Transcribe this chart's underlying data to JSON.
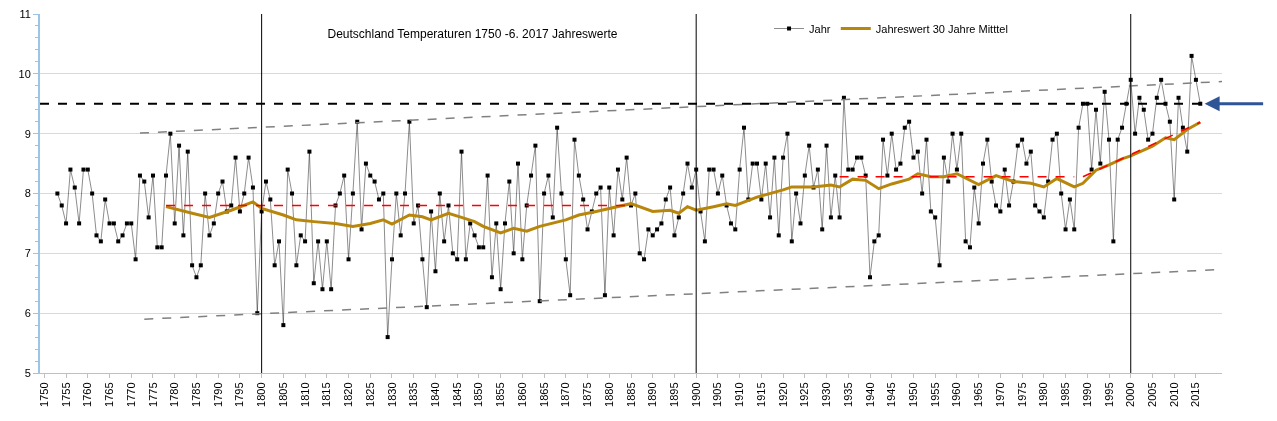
{
  "chart_data": {
    "type": "line",
    "title": "Deutschland Temperaturen 1750 -6. 2017 Jahreswerte",
    "xlim": [
      1749,
      2021
    ],
    "xticks": [
      1750,
      1755,
      1760,
      1765,
      1770,
      1775,
      1780,
      1785,
      1790,
      1795,
      1800,
      1805,
      1810,
      1815,
      1820,
      1825,
      1830,
      1835,
      1840,
      1845,
      1850,
      1855,
      1860,
      1865,
      1870,
      1875,
      1880,
      1885,
      1890,
      1895,
      1900,
      1905,
      1910,
      1915,
      1920,
      1925,
      1930,
      1935,
      1940,
      1945,
      1950,
      1955,
      1960,
      1965,
      1970,
      1975,
      1980,
      1985,
      1990,
      1995,
      2000,
      2005,
      2010,
      2015
    ],
    "ylim": [
      5,
      11
    ],
    "yticks": [
      5,
      6,
      7,
      8,
      9,
      10,
      11
    ],
    "grid": "y",
    "legend": "top",
    "series": [
      {
        "name": "Jahr",
        "color": "#000000",
        "marker": "square",
        "line_style": "solid",
        "x": [
          1753,
          1754,
          1755,
          1756,
          1757,
          1758,
          1759,
          1760,
          1761,
          1762,
          1763,
          1764,
          1765,
          1766,
          1767,
          1768,
          1769,
          1770,
          1771,
          1772,
          1773,
          1774,
          1775,
          1776,
          1777,
          1778,
          1779,
          1780,
          1781,
          1782,
          1783,
          1784,
          1785,
          1786,
          1787,
          1788,
          1789,
          1790,
          1791,
          1792,
          1793,
          1794,
          1795,
          1796,
          1797,
          1798,
          1799,
          1800,
          1801,
          1802,
          1803,
          1804,
          1805,
          1806,
          1807,
          1808,
          1809,
          1810,
          1811,
          1812,
          1813,
          1814,
          1815,
          1816,
          1817,
          1818,
          1819,
          1820,
          1821,
          1822,
          1823,
          1824,
          1825,
          1826,
          1827,
          1828,
          1829,
          1830,
          1831,
          1832,
          1833,
          1834,
          1835,
          1836,
          1837,
          1838,
          1839,
          1840,
          1841,
          1842,
          1843,
          1844,
          1845,
          1846,
          1847,
          1848,
          1849,
          1850,
          1851,
          1852,
          1853,
          1854,
          1855,
          1856,
          1857,
          1858,
          1859,
          1860,
          1861,
          1862,
          1863,
          1864,
          1865,
          1866,
          1867,
          1868,
          1869,
          1870,
          1871,
          1872,
          1873,
          1874,
          1875,
          1876,
          1877,
          1878,
          1879,
          1880,
          1881,
          1882,
          1883,
          1884,
          1885,
          1886,
          1887,
          1888,
          1889,
          1890,
          1891,
          1892,
          1893,
          1894,
          1895,
          1896,
          1897,
          1898,
          1899,
          1900,
          1901,
          1902,
          1903,
          1904,
          1905,
          1906,
          1907,
          1908,
          1909,
          1910,
          1911,
          1912,
          1913,
          1914,
          1915,
          1916,
          1917,
          1918,
          1919,
          1920,
          1921,
          1922,
          1923,
          1924,
          1925,
          1926,
          1927,
          1928,
          1929,
          1930,
          1931,
          1932,
          1933,
          1934,
          1935,
          1936,
          1937,
          1938,
          1939,
          1940,
          1941,
          1942,
          1943,
          1944,
          1945,
          1946,
          1947,
          1948,
          1949,
          1950,
          1951,
          1952,
          1953,
          1954,
          1955,
          1956,
          1957,
          1958,
          1959,
          1960,
          1961,
          1962,
          1963,
          1964,
          1965,
          1966,
          1967,
          1968,
          1969,
          1970,
          1971,
          1972,
          1973,
          1974,
          1975,
          1976,
          1977,
          1978,
          1979,
          1980,
          1981,
          1982,
          1983,
          1984,
          1985,
          1986,
          1987,
          1988,
          1989,
          1990,
          1991,
          1992,
          1993,
          1994,
          1995,
          1996,
          1997,
          1998,
          1999,
          2000,
          2001,
          2002,
          2003,
          2004,
          2005,
          2006,
          2007,
          2008,
          2009,
          2010,
          2011,
          2012,
          2013,
          2014,
          2015,
          2016
        ],
        "values": [
          8.0,
          7.8,
          7.5,
          8.4,
          8.1,
          7.5,
          8.4,
          8.4,
          8.0,
          7.3,
          7.2,
          7.9,
          7.5,
          7.5,
          7.2,
          7.3,
          7.5,
          7.5,
          6.9,
          8.3,
          8.2,
          7.6,
          8.3,
          7.1,
          7.1,
          8.3,
          9.0,
          7.5,
          8.8,
          7.3,
          8.7,
          6.8,
          6.6,
          6.8,
          8.0,
          7.3,
          7.5,
          8.0,
          8.2,
          7.7,
          7.8,
          8.6,
          7.7,
          8.0,
          8.6,
          8.1,
          6.0,
          7.7,
          8.2,
          7.9,
          6.8,
          7.2,
          5.8,
          8.4,
          8.0,
          6.8,
          7.3,
          7.2,
          8.7,
          6.5,
          7.2,
          6.4,
          7.2,
          6.4,
          7.8,
          8.0,
          8.3,
          6.9,
          8.0,
          9.2,
          7.4,
          8.5,
          8.3,
          8.2,
          7.9,
          8.0,
          5.6,
          6.9,
          8.0,
          7.3,
          8.0,
          9.2,
          7.5,
          7.8,
          6.9,
          6.1,
          7.7,
          6.7,
          8.0,
          7.2,
          7.8,
          7.0,
          6.9,
          8.7,
          6.9,
          7.5,
          7.3,
          7.1,
          7.1,
          8.3,
          6.6,
          7.5,
          6.4,
          7.5,
          8.2,
          7.0,
          8.5,
          6.9,
          7.8,
          8.3,
          8.8,
          6.2,
          8.0,
          8.3,
          7.6,
          9.1,
          8.0,
          6.9,
          6.3,
          8.9,
          8.3,
          7.9,
          7.4,
          7.7,
          8.0,
          8.1,
          6.3,
          8.1,
          7.3,
          8.4,
          7.9,
          8.6,
          7.8,
          8.0,
          7.0,
          6.9,
          7.4,
          7.3,
          7.4,
          7.5,
          7.9,
          8.1,
          7.3,
          7.6,
          8.0,
          8.5,
          8.1,
          8.4,
          7.7,
          7.2,
          8.4,
          8.4,
          8.0,
          8.3,
          7.8,
          7.5,
          7.4,
          8.4,
          9.1,
          7.9,
          8.5,
          8.5,
          7.9,
          8.5,
          7.6,
          8.6,
          7.3,
          8.6,
          9.0,
          7.2,
          8.0,
          7.5,
          8.3,
          8.8,
          8.1,
          8.4,
          7.4,
          8.8,
          7.6,
          8.3,
          7.6,
          9.6,
          8.4,
          8.4,
          8.6,
          8.6,
          8.3,
          6.6,
          7.2,
          7.3,
          8.9,
          8.3,
          9.0,
          8.4,
          8.5,
          9.1,
          9.2,
          8.6,
          8.7,
          8.0,
          8.9,
          7.7,
          7.6,
          6.8,
          8.6,
          8.2,
          9.0,
          8.4,
          9.0,
          7.2,
          7.1,
          8.1,
          7.5,
          8.5,
          8.9,
          8.2,
          7.8,
          7.7,
          8.4,
          7.8,
          8.2,
          8.8,
          8.9,
          8.5,
          8.7,
          7.8,
          7.7,
          7.6,
          8.2,
          8.9,
          9.0,
          8.0,
          7.4,
          7.9,
          7.4,
          9.1,
          9.5,
          9.5,
          8.4,
          9.4,
          8.5,
          9.7,
          8.9,
          7.2,
          8.9,
          9.1,
          9.5,
          9.9,
          9.0,
          9.6,
          9.4,
          8.9,
          9.0,
          9.6,
          9.9,
          9.5,
          9.2,
          7.9,
          9.6,
          9.1,
          8.7,
          10.3,
          9.9,
          9.5
        ]
      },
      {
        "name": "Jahreswert 30 Jahre Mitttel",
        "color": "#b8860b",
        "marker": "none",
        "line_style": "solid",
        "x": [
          1778,
          1784,
          1788,
          1793,
          1798,
          1800,
          1805,
          1808,
          1812,
          1817,
          1821,
          1825,
          1828,
          1830,
          1834,
          1837,
          1839,
          1843,
          1846,
          1849,
          1851,
          1855,
          1858,
          1861,
          1864,
          1870,
          1873,
          1877,
          1880,
          1885,
          1890,
          1894,
          1896,
          1898,
          1900,
          1904,
          1907,
          1909,
          1914,
          1920,
          1922,
          1927,
          1931,
          1933,
          1936,
          1939,
          1942,
          1945,
          1949,
          1951,
          1954,
          1957,
          1960,
          1965,
          1969,
          1973,
          1977,
          1980,
          1983,
          1987,
          1989,
          1992,
          1995,
          1998,
          2000,
          2005,
          2008,
          2010,
          2013,
          2016
        ],
        "values": [
          7.78,
          7.67,
          7.6,
          7.72,
          7.86,
          7.75,
          7.64,
          7.56,
          7.53,
          7.5,
          7.45,
          7.5,
          7.56,
          7.49,
          7.64,
          7.61,
          7.56,
          7.67,
          7.6,
          7.53,
          7.45,
          7.34,
          7.42,
          7.37,
          7.45,
          7.56,
          7.64,
          7.7,
          7.75,
          7.83,
          7.7,
          7.72,
          7.67,
          7.78,
          7.72,
          7.78,
          7.83,
          7.8,
          7.94,
          8.06,
          8.11,
          8.11,
          8.14,
          8.11,
          8.24,
          8.22,
          8.08,
          8.16,
          8.24,
          8.33,
          8.28,
          8.28,
          8.33,
          8.15,
          8.3,
          8.2,
          8.17,
          8.11,
          8.25,
          8.11,
          8.17,
          8.39,
          8.48,
          8.58,
          8.63,
          8.79,
          8.93,
          8.9,
          9.07,
          9.19
        ]
      },
      {
        "color": "#ff0000",
        "marker": "none",
        "line_style": "dashed",
        "x": [
          1778,
          1885
        ],
        "values": [
          7.8,
          7.8
        ]
      },
      {
        "color": "#ff0000",
        "marker": "none",
        "line_style": "dashed",
        "x": [
          1933,
          1987
        ],
        "values": [
          8.28,
          8.28
        ]
      },
      {
        "color": "#ff0000",
        "marker": "none",
        "line_style": "dashed",
        "x": [
          1989,
          1998,
          2000,
          2016
        ],
        "values": [
          8.28,
          8.58,
          8.65,
          9.19
        ]
      },
      {
        "color": "#808080",
        "marker": "none",
        "line_style": "dashed",
        "x": [
          1772,
          2021
        ],
        "values": [
          9.01,
          9.87
        ]
      },
      {
        "color": "#808080",
        "marker": "none",
        "line_style": "dashed",
        "x": [
          1773,
          2021
        ],
        "values": [
          5.9,
          6.73
        ]
      }
    ],
    "ref_lines": [
      {
        "axis": "y",
        "value": 9.5,
        "color": "#000000",
        "line_style": "dashed"
      },
      {
        "axis": "x",
        "value": 1800,
        "color": "#000000",
        "line_style": "solid"
      },
      {
        "axis": "x",
        "value": 1900,
        "color": "#000000",
        "line_style": "solid"
      },
      {
        "axis": "x",
        "value": 2000,
        "color": "#000000",
        "line_style": "solid"
      }
    ]
  }
}
